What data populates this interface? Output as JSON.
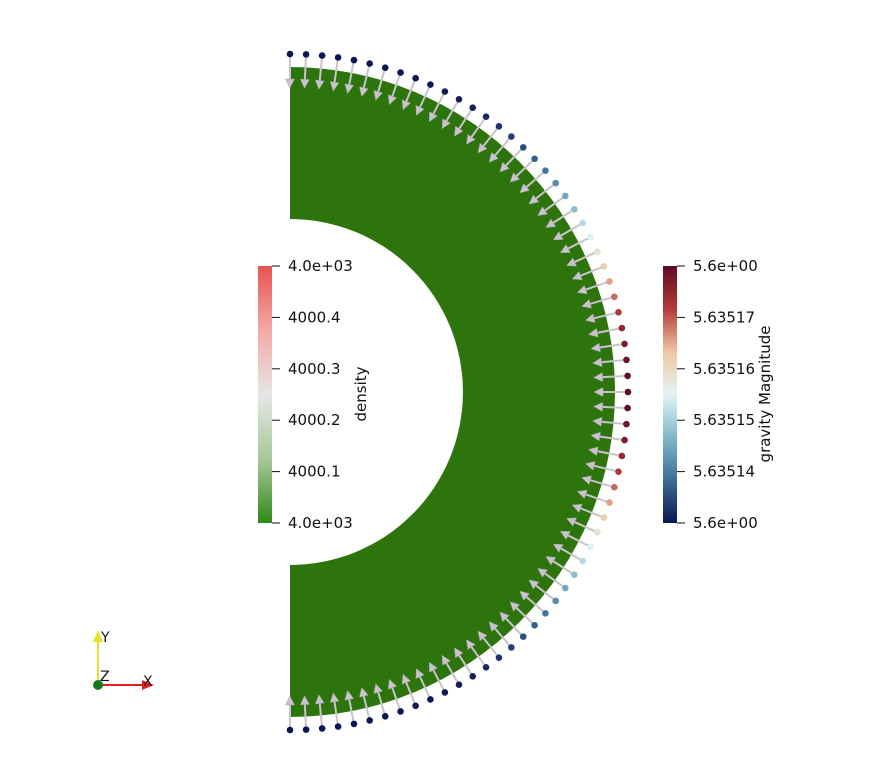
{
  "colors": {
    "background": "#ffffff",
    "mesh": "#2e740c",
    "arrow": "#c8c3cc",
    "axis_x": "#e0201b",
    "axis_y": "#e8e02a",
    "axis_z": "#147a1b"
  },
  "density_bar": {
    "title": "density",
    "ticks": [
      "4.0e+03",
      "4000.4",
      "4000.3",
      "4000.2",
      "4000.1",
      "4.0e+03"
    ],
    "colormap": [
      "#e8524f",
      "#f4a9a6",
      "#e6e6e6",
      "#a8c89a",
      "#2e8b16"
    ]
  },
  "gravity_bar": {
    "title": "gravity Magnitude",
    "ticks": [
      "5.6e+00",
      "5.63517",
      "5.63516",
      "5.63515",
      "5.63514",
      "5.6e+00"
    ],
    "colormap": [
      "#5f0b24",
      "#b23a3a",
      "#f0c6a3",
      "#e3f4f4",
      "#7fb8cb",
      "#3b6e96",
      "#0c1650"
    ]
  },
  "axes": {
    "x_label": "X",
    "y_label": "Y",
    "z_label": "Z"
  }
}
